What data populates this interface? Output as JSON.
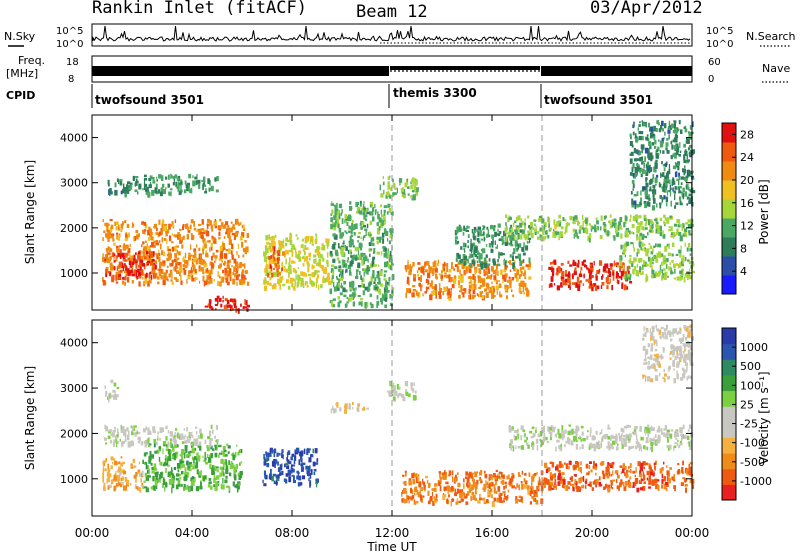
{
  "header": {
    "title": "Rankin Inlet (fitACF)",
    "beam": "Beam 12",
    "date": "03/Apr/2012"
  },
  "top_panel": {
    "nsky_label": "N.Sky",
    "nsearch_label": "N.Search",
    "noise_ticks": [
      "10^5",
      "10^0"
    ],
    "freq_label_1": "Freq.",
    "freq_label_2": "[MHz]",
    "freq_ticks": [
      "18",
      "8"
    ],
    "nave_label": "Nave",
    "nave_ticks": [
      "60",
      "0"
    ],
    "cpid_label": "CPID",
    "cpid_segments": [
      {
        "name": "twofsound 3501",
        "start_hour": 0,
        "end_hour": 12
      },
      {
        "name": "themis 3300",
        "start_hour": 12,
        "end_hour": 18
      },
      {
        "name": "twofsound 3501",
        "start_hour": 18,
        "end_hour": 24
      }
    ]
  },
  "colors": {
    "power_scale": [
      "#1a1aff",
      "#2b4fa8",
      "#2e7d5a",
      "#4aa862",
      "#a6d63a",
      "#f0c020",
      "#f08a10",
      "#f05a10",
      "#e01010"
    ],
    "velocity_scale": [
      "#e82020",
      "#f05a10",
      "#f08a18",
      "#f5b040",
      "#c8c8c0",
      "#c8c8c0",
      "#7ad040",
      "#3aa03a",
      "#2e8a60",
      "#2a55b0",
      "#2a3aa8"
    ]
  },
  "chart_data": [
    {
      "type": "heatmap",
      "title": "",
      "xlabel": "Time UT",
      "ylabel": "Slant Range [km]",
      "x_ticks": [
        "00:00",
        "04:00",
        "08:00",
        "12:00",
        "16:00",
        "20:00",
        "00:00"
      ],
      "y_ticks": [
        "1000",
        "2000",
        "3000",
        "4000"
      ],
      "xlim_hours": [
        0,
        24
      ],
      "ylim_km": [
        180,
        4500
      ],
      "colorbar_label": "Power [dB]",
      "colorbar_ticks": [
        "4",
        "8",
        "12",
        "16",
        "20",
        "24",
        "28"
      ],
      "colorbar_range": [
        0,
        30
      ],
      "regions": [
        {
          "x": [
            0.4,
            6.2
          ],
          "y": [
            800,
            2200
          ],
          "value": 22
        },
        {
          "x": [
            0.5,
            2.5
          ],
          "y": [
            900,
            1500
          ],
          "value": 27
        },
        {
          "x": [
            4.5,
            6.2
          ],
          "y": [
            200,
            500
          ],
          "value": 28
        },
        {
          "x": [
            0.5,
            1.2
          ],
          "y": [
            2800,
            3100
          ],
          "value": 8
        },
        {
          "x": [
            1.2,
            5.0
          ],
          "y": [
            2800,
            3200
          ],
          "value": 10
        },
        {
          "x": [
            6.8,
            9.5
          ],
          "y": [
            700,
            1900
          ],
          "value": 17
        },
        {
          "x": [
            7.0,
            7.6
          ],
          "y": [
            1000,
            1600
          ],
          "value": 25
        },
        {
          "x": [
            9.5,
            12.0
          ],
          "y": [
            300,
            2600
          ],
          "value": 12
        },
        {
          "x": [
            11.5,
            13.0
          ],
          "y": [
            2700,
            3200
          ],
          "value": 14
        },
        {
          "x": [
            12.5,
            17.5
          ],
          "y": [
            500,
            1300
          ],
          "value": 22
        },
        {
          "x": [
            14.5,
            17.5
          ],
          "y": [
            1200,
            2100
          ],
          "value": 10
        },
        {
          "x": [
            16.5,
            24.0
          ],
          "y": [
            1800,
            2300
          ],
          "value": 14
        },
        {
          "x": [
            18.2,
            21.5
          ],
          "y": [
            700,
            1300
          ],
          "value": 27
        },
        {
          "x": [
            21.0,
            24.0
          ],
          "y": [
            900,
            1700
          ],
          "value": 14
        },
        {
          "x": [
            21.5,
            24.0
          ],
          "y": [
            2500,
            4400
          ],
          "value": 9
        }
      ]
    },
    {
      "type": "heatmap",
      "title": "",
      "xlabel": "Time UT",
      "ylabel": "Slant Range [km]",
      "x_ticks": [
        "00:00",
        "04:00",
        "08:00",
        "12:00",
        "16:00",
        "20:00",
        "00:00"
      ],
      "y_ticks": [
        "1000",
        "2000",
        "3000",
        "4000"
      ],
      "xlim_hours": [
        0,
        24
      ],
      "ylim_km": [
        180,
        4500
      ],
      "colorbar_label": "Velocity [m s⁻¹]",
      "colorbar_ticks": [
        "1000",
        "500",
        "100",
        "25",
        "-25",
        "-100",
        "-500",
        "-1000"
      ],
      "colorbar_range": [
        -1000,
        1000
      ],
      "regions": [
        {
          "x": [
            0.4,
            2.0
          ],
          "y": [
            800,
            1500
          ],
          "value": -400
        },
        {
          "x": [
            2.0,
            6.0
          ],
          "y": [
            800,
            1800
          ],
          "value": 300
        },
        {
          "x": [
            0.4,
            5.0
          ],
          "y": [
            1800,
            2200
          ],
          "value": 0
        },
        {
          "x": [
            0.5,
            1.0
          ],
          "y": [
            2800,
            3200
          ],
          "value": 0
        },
        {
          "x": [
            6.8,
            9.0
          ],
          "y": [
            900,
            1700
          ],
          "value": 800
        },
        {
          "x": [
            9.5,
            11.0
          ],
          "y": [
            2500,
            2700
          ],
          "value": -200
        },
        {
          "x": [
            11.8,
            13.0
          ],
          "y": [
            2800,
            3200
          ],
          "value": 0
        },
        {
          "x": [
            12.3,
            18.0
          ],
          "y": [
            500,
            1200
          ],
          "value": -600
        },
        {
          "x": [
            16.5,
            24.0
          ],
          "y": [
            1700,
            2200
          ],
          "value": 0
        },
        {
          "x": [
            18.0,
            24.0
          ],
          "y": [
            800,
            1400
          ],
          "value": -700
        },
        {
          "x": [
            22.0,
            24.0
          ],
          "y": [
            3200,
            4400
          ],
          "value": -150
        }
      ]
    }
  ]
}
